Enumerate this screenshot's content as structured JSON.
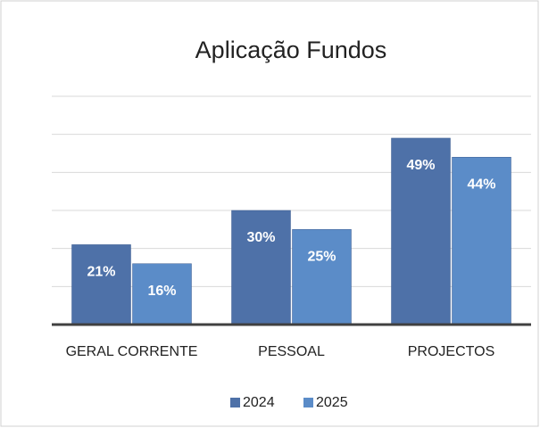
{
  "chart_data": {
    "type": "bar",
    "title": "Aplicação Fundos",
    "categories": [
      "GERAL CORRENTE",
      "PESSOAL",
      "PROJECTOS"
    ],
    "series": [
      {
        "name": "2024",
        "color": "#4e71a8",
        "values": [
          21,
          30,
          49
        ],
        "value_labels": [
          "21%",
          "30%",
          "49%"
        ]
      },
      {
        "name": "2025",
        "color": "#5b8cc8",
        "values": [
          16,
          25,
          44
        ],
        "value_labels": [
          "16%",
          "25%",
          "44%"
        ]
      }
    ],
    "ylim": [
      0,
      60
    ],
    "yticks": [
      0,
      10,
      20,
      30,
      40,
      50,
      60
    ],
    "grid": true,
    "legend": "bottom"
  }
}
